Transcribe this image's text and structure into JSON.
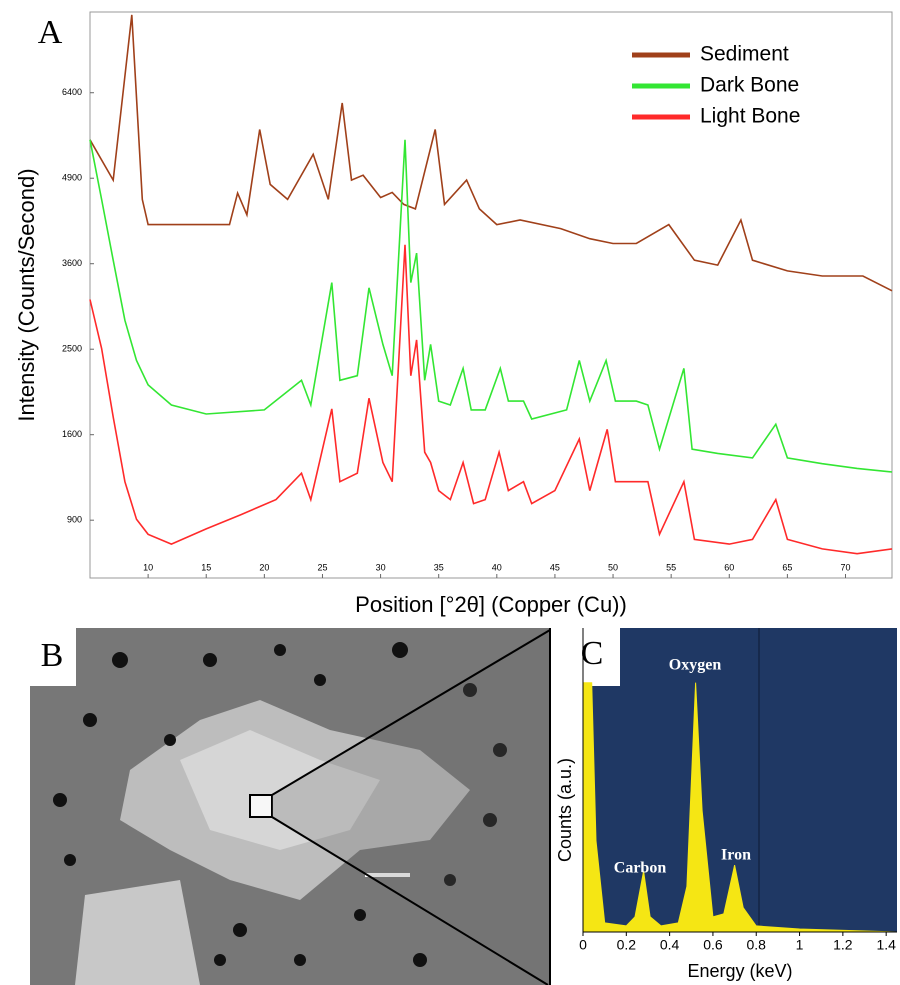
{
  "chart_data": [
    {
      "type": "line",
      "panel": "A",
      "x_label": "Position [°2θ] (Copper (Cu))",
      "y_label": "Intensity (Counts/Second)",
      "xlim": [
        5,
        74
      ],
      "ylim": [
        540,
        8000
      ],
      "yscale": "sqrt",
      "legend": "upper right",
      "xticks": [
        10,
        15,
        20,
        25,
        30,
        35,
        40,
        45,
        50,
        55,
        60,
        65,
        70
      ],
      "yticks": [
        900,
        1600,
        2500,
        3600,
        4900,
        6400
      ],
      "series": [
        {
          "name": "Sediment",
          "color": "#a0401a",
          "x": [
            5,
            7,
            8.6,
            9.5,
            10,
            17,
            17.7,
            18.5,
            19.6,
            20.5,
            22,
            24.2,
            25.5,
            26.7,
            27.5,
            28.5,
            30,
            31,
            32,
            33,
            34.7,
            35.5,
            37.4,
            38.5,
            40,
            42,
            45.5,
            48,
            50,
            52,
            54.8,
            57,
            59,
            61,
            62,
            65,
            68,
            71.5,
            74
          ],
          "values": [
            5550,
            4870,
            7940,
            4560,
            4170,
            4170,
            4660,
            4320,
            5730,
            4800,
            4560,
            5300,
            4560,
            6210,
            4870,
            4950,
            4590,
            4670,
            4480,
            4410,
            5730,
            4480,
            4870,
            4410,
            4170,
            4240,
            4110,
            3960,
            3890,
            3890,
            4170,
            3650,
            3580,
            4240,
            3650,
            3500,
            3430,
            3430,
            3230
          ]
        },
        {
          "name": "Dark Bone",
          "color": "#33e633",
          "x": [
            5,
            6,
            7,
            8,
            9,
            10,
            12,
            15,
            20,
            23.2,
            24,
            25.8,
            26.5,
            28,
            29,
            30.2,
            31,
            32.1,
            32.6,
            33.1,
            33.8,
            34.3,
            35,
            36,
            37.1,
            37.8,
            39,
            40.3,
            41,
            42.3,
            43,
            46,
            47.1,
            48,
            49.4,
            50.2,
            52,
            53,
            54,
            56.1,
            56.8,
            59,
            62,
            64,
            65,
            68,
            71,
            74
          ],
          "values": [
            5550,
            4560,
            3650,
            2850,
            2370,
            2100,
            1890,
            1800,
            1840,
            2150,
            1890,
            3340,
            2150,
            2200,
            3270,
            2556,
            2200,
            5550,
            3340,
            3750,
            2150,
            2556,
            1930,
            1890,
            2280,
            1840,
            1840,
            2280,
            1930,
            1930,
            1750,
            1840,
            2370,
            1930,
            2370,
            1930,
            1930,
            1890,
            1467,
            2280,
            1467,
            1430,
            1390,
            1700,
            1390,
            1340,
            1300,
            1270
          ]
        },
        {
          "name": "Light Bone",
          "color": "#ff2a2a",
          "x": [
            5,
            6,
            7,
            8,
            9,
            10,
            12,
            15,
            18,
            21,
            23.2,
            24,
            25.8,
            26.5,
            28,
            29,
            30.2,
            31,
            32.1,
            32.6,
            33.1,
            33.8,
            34.3,
            35,
            36,
            37.1,
            38,
            39,
            40.2,
            41,
            42.3,
            43,
            45,
            47.1,
            48,
            49.5,
            50.2,
            52,
            53,
            54,
            56.1,
            57,
            60,
            62,
            64,
            65,
            68,
            71,
            74
          ],
          "values": [
            3115,
            2510,
            1770,
            1190,
            906,
            804,
            740,
            840,
            940,
            1050,
            1260,
            1050,
            1850,
            1190,
            1260,
            1960,
            1350,
            1190,
            3870,
            2200,
            2610,
            1440,
            1350,
            1120,
            1050,
            1350,
            1020,
            1050,
            1440,
            1120,
            1190,
            1020,
            1120,
            1560,
            1120,
            1650,
            1190,
            1190,
            1190,
            804,
            1190,
            770,
            740,
            770,
            1050,
            770,
            710,
            680,
            710
          ]
        }
      ]
    },
    {
      "type": "area",
      "panel": "C",
      "x_label": "Energy (keV)",
      "y_label": "Counts (a.u.)",
      "xlim": [
        0,
        1.45
      ],
      "ylim": [
        0,
        100
      ],
      "xticks": [
        0,
        0.2,
        0.4,
        0.6,
        0.8,
        1,
        1.2,
        1.4
      ],
      "color": "#f5e614",
      "background": "#1f3864",
      "annotations": [
        "Carbon",
        "Oxygen",
        "Iron"
      ],
      "x": [
        0,
        0.04,
        0.06,
        0.1,
        0.2,
        0.24,
        0.28,
        0.31,
        0.36,
        0.44,
        0.48,
        0.52,
        0.55,
        0.6,
        0.65,
        0.7,
        0.74,
        0.8,
        1,
        1.45
      ],
      "values": [
        82,
        82,
        30,
        3,
        2,
        5,
        20,
        5,
        2,
        3,
        15,
        82,
        40,
        5,
        6,
        22,
        8,
        2,
        1,
        0
      ]
    }
  ],
  "panel_b": {
    "label": "B"
  }
}
